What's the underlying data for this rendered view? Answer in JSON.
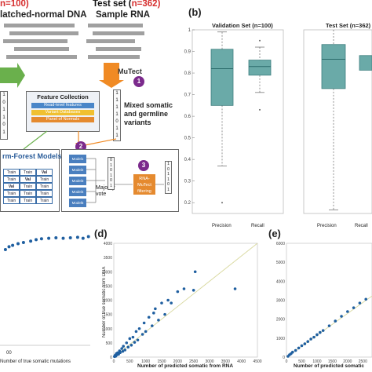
{
  "panel_a": {
    "train_set_count": "n=100)",
    "train_subtitle": "latched-normal DNA",
    "test_set_label": "Test set (",
    "test_set_count": "n=362)",
    "test_subtitle": "Sample RNA",
    "mutect_label": "MuTect",
    "step1": "1",
    "step2": "2",
    "step3": "3",
    "feature_title": "Feature Collection",
    "feature_items": [
      "Read-level features",
      "Variant Databases",
      "Panel of Normals"
    ],
    "mixed_label": "Mixed somatic and germline variants",
    "forest_label": "rm-Forest Models",
    "train_table": [
      [
        "Train",
        "Train",
        "Val"
      ],
      [
        "Train",
        "Val",
        "Train"
      ],
      [
        "Val",
        "Train",
        "Train"
      ],
      [
        "Train",
        "Train",
        "Train"
      ],
      [
        "Train",
        "Train",
        "Train"
      ]
    ],
    "models": [
      "Model1",
      "Model2",
      "Model3",
      "Model4",
      "Model5"
    ],
    "majority_label": "Majority vote",
    "rna_filter_label": "RNA-MuTect filtering",
    "binary_left": [
      "1",
      "0",
      "1",
      "1",
      "0",
      "1"
    ],
    "binary_right": [
      "1",
      "1",
      "1",
      "1",
      "0",
      "1",
      "1"
    ],
    "binary_vote": [
      "0",
      "1",
      "0",
      "1",
      "0",
      "1"
    ],
    "binary_rna": [
      "1",
      "0",
      "1",
      "1",
      "0",
      "1"
    ]
  },
  "panel_b": {
    "letter": "(b)",
    "colors": {
      "box": "#6aaaa8",
      "median": "#2b6b6b"
    }
  },
  "panel_d": {
    "letter": "(d)"
  },
  "panel_e": {
    "letter": "(e)"
  },
  "panel_c_tick": "00",
  "chart_data": [
    {
      "type": "box",
      "title": "Validation Set (n=100)",
      "categories": [
        "Precision",
        "Recall"
      ],
      "ylim": [
        0.15,
        1.0
      ],
      "yticks": [
        0.2,
        0.3,
        0.4,
        0.5,
        0.6,
        0.7,
        0.8,
        0.9,
        1
      ],
      "boxes": [
        {
          "name": "Precision",
          "whisker_low": 0.37,
          "q1": 0.65,
          "median": 0.82,
          "q3": 0.91,
          "whisker_high": 0.99,
          "outliers": [
            0.2
          ]
        },
        {
          "name": "Recall",
          "whisker_low": 0.71,
          "q1": 0.79,
          "median": 0.83,
          "q3": 0.86,
          "whisker_high": 0.92,
          "outliers": [
            0.63,
            0.95
          ]
        }
      ]
    },
    {
      "type": "box",
      "title": "Test Set (n=362)",
      "categories": [
        "Precision",
        "Recall"
      ],
      "ylim": [
        0.0,
        1.0
      ],
      "boxes": [
        {
          "name": "Precision",
          "whisker_low": 0.02,
          "q1": 0.68,
          "median": 0.84,
          "q3": 0.92,
          "whisker_high": 1.0
        },
        {
          "name": "Recall",
          "q1": 0.78,
          "median": 0.82,
          "q3": 0.86
        }
      ]
    },
    {
      "type": "scatter",
      "xlabel": "Number of true somatic mutations",
      "xticks": [
        "00"
      ],
      "points": [
        [
          0.06,
          0.6
        ],
        [
          0.1,
          0.48
        ],
        [
          0.14,
          0.42
        ],
        [
          0.2,
          0.35
        ],
        [
          0.26,
          0.3
        ],
        [
          0.34,
          0.24
        ],
        [
          0.4,
          0.18
        ],
        [
          0.46,
          0.14
        ],
        [
          0.54,
          0.12
        ],
        [
          0.62,
          0.1
        ],
        [
          0.7,
          0.12
        ],
        [
          0.78,
          0.1
        ],
        [
          0.86,
          0.08
        ],
        [
          0.92,
          0.12
        ],
        [
          0.98,
          0.05
        ]
      ]
    },
    {
      "type": "scatter",
      "xlabel": "Number of predicted somatic from RNA",
      "ylabel": "Number of true somatic from DNA",
      "xlim": [
        0,
        4500
      ],
      "ylim": [
        0,
        4000
      ],
      "xticks": [
        0,
        500,
        1000,
        1500,
        2000,
        2500,
        3000,
        3500,
        4000,
        4500
      ],
      "yticks": [
        0,
        500,
        1000,
        1500,
        2000,
        2500,
        3000,
        3500,
        4000
      ],
      "diagonal": true,
      "points": [
        [
          20,
          20
        ],
        [
          40,
          60
        ],
        [
          60,
          30
        ],
        [
          80,
          120
        ],
        [
          100,
          80
        ],
        [
          120,
          150
        ],
        [
          150,
          100
        ],
        [
          180,
          220
        ],
        [
          200,
          160
        ],
        [
          250,
          300
        ],
        [
          280,
          200
        ],
        [
          300,
          380
        ],
        [
          350,
          250
        ],
        [
          400,
          500
        ],
        [
          450,
          350
        ],
        [
          500,
          650
        ],
        [
          550,
          420
        ],
        [
          600,
          700
        ],
        [
          650,
          520
        ],
        [
          700,
          900
        ],
        [
          750,
          600
        ],
        [
          800,
          1000
        ],
        [
          900,
          800
        ],
        [
          950,
          1200
        ],
        [
          1000,
          900
        ],
        [
          1100,
          1400
        ],
        [
          1200,
          1100
        ],
        [
          1250,
          1550
        ],
        [
          1300,
          1700
        ],
        [
          1400,
          1300
        ],
        [
          1500,
          1900
        ],
        [
          1600,
          1500
        ],
        [
          1700,
          2000
        ],
        [
          1800,
          1900
        ],
        [
          2000,
          2300
        ],
        [
          2200,
          2400
        ],
        [
          2500,
          2350
        ],
        [
          2550,
          3000
        ],
        [
          3800,
          2400
        ]
      ]
    },
    {
      "type": "scatter",
      "xlabel": "Number of predicted somatic",
      "ylim": [
        0,
        6000
      ],
      "yticks": [
        0,
        1000,
        2000,
        3000,
        4000,
        5000,
        6000
      ],
      "xticks": [
        0,
        500,
        1000,
        1500,
        2000,
        2500
      ],
      "diagonal": true,
      "points": [
        [
          50,
          40
        ],
        [
          100,
          120
        ],
        [
          150,
          180
        ],
        [
          200,
          260
        ],
        [
          300,
          350
        ],
        [
          400,
          480
        ],
        [
          500,
          600
        ],
        [
          600,
          700
        ],
        [
          700,
          820
        ],
        [
          800,
          950
        ],
        [
          900,
          1050
        ],
        [
          1000,
          1180
        ],
        [
          1100,
          1300
        ],
        [
          1200,
          1400
        ],
        [
          1400,
          1650
        ],
        [
          1600,
          1900
        ],
        [
          1800,
          2150
        ],
        [
          2000,
          2400
        ],
        [
          2200,
          2600
        ],
        [
          2400,
          2850
        ],
        [
          2600,
          3050
        ]
      ]
    }
  ]
}
